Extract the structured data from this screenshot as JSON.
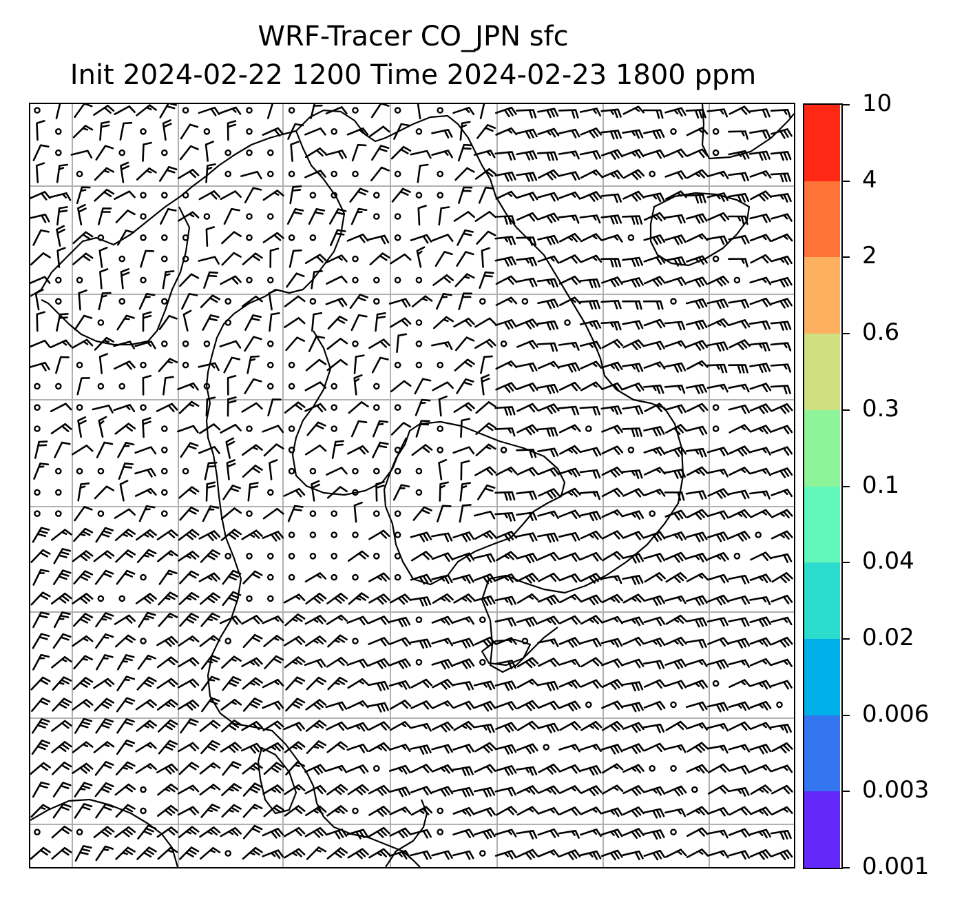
{
  "title": {
    "line1": "WRF-Tracer CO_JPN sfc",
    "line2": "Init 2024-02-22 1200 Time 2024-02-23 1800 ppm"
  },
  "map": {
    "kind": "surface wind barbs over coastline map",
    "gridlines": true,
    "gridline_color": "#b0b0b0",
    "coastline_color": "#000000",
    "barb_color": "#000000"
  },
  "colorbar": {
    "labels": [
      "0.001",
      "0.003",
      "0.006",
      "0.02",
      "0.04",
      "0.1",
      "0.3",
      "0.6",
      "2",
      "4",
      "10"
    ],
    "colors": [
      "#6428fa",
      "#3476f0",
      "#00b0e8",
      "#2cdccc",
      "#62f8bc",
      "#8ef49a",
      "#d0e080",
      "#fcb060",
      "#ff7238",
      "#ff2814"
    ]
  }
}
